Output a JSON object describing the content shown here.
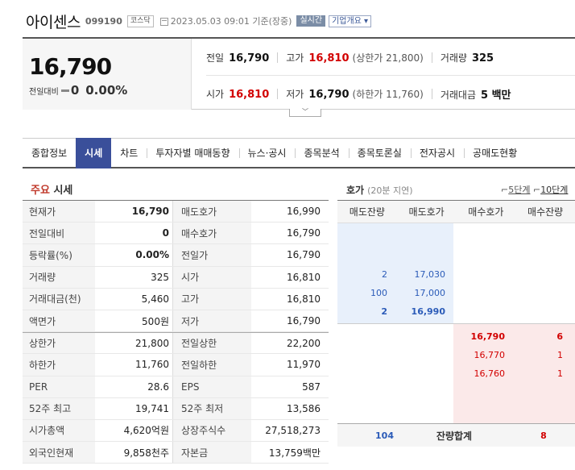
{
  "header": {
    "name": "아이센스",
    "code": "099190",
    "market": "코스닥",
    "date": "2023.05.03 09:01 기준(장중)",
    "realtime_label": "실시간",
    "company_info_label": "기업개요 ▾"
  },
  "summary": {
    "current_price": "16,790",
    "change_label": "전일대비",
    "change_value": "0",
    "change_pct": "0.00%",
    "prev_close_label": "전일",
    "prev_close": "16,790",
    "high_label": "고가",
    "high": "16,810",
    "upper_limit": "(상한가 21,800)",
    "volume_label": "거래량",
    "volume": "325",
    "open_label": "시가",
    "open": "16,810",
    "low_label": "저가",
    "low": "16,790",
    "lower_limit": "(하한가 11,760)",
    "amount_label": "거래대금",
    "amount": "5 백만"
  },
  "tabs": [
    "종합정보",
    "시세",
    "차트",
    "투자자별 매매동향",
    "뉴스·공시",
    "종목분석",
    "종목토론실",
    "전자공시",
    "공매도현황"
  ],
  "market_section": {
    "title_highlight": "주요",
    "title_rest": " 시세",
    "rows": [
      [
        "현재가",
        "16,790",
        "매도호가",
        "16,990"
      ],
      [
        "전일대비",
        "0",
        "매수호가",
        "16,790"
      ],
      [
        "등락률(%)",
        "0.00%",
        "전일가",
        "16,790"
      ],
      [
        "거래량",
        "325",
        "시가",
        "16,810"
      ],
      [
        "거래대금(천)",
        "5,460",
        "고가",
        "16,810"
      ],
      [
        "액면가",
        "500원",
        "저가",
        "16,790"
      ],
      [
        "상한가",
        "21,800",
        "전일상한",
        "22,200"
      ],
      [
        "하한가",
        "11,760",
        "전일하한",
        "11,970"
      ],
      [
        "PER",
        "28.6",
        "EPS",
        "587"
      ],
      [
        "52주 최고",
        "19,741",
        "52주 최저",
        "13,586"
      ],
      [
        "시가총액",
        "4,620억원",
        "상장주식수",
        "27,518,273"
      ],
      [
        "외국인현재",
        "9,858천주",
        "자본금",
        "13,759백만"
      ]
    ]
  },
  "orderbook": {
    "title": "호가",
    "delay_note": "(20분 지연)",
    "opt_5": "5단계",
    "opt_10": "10단계",
    "headers": [
      "매도잔량",
      "매도호가",
      "매수호가",
      "매수잔량"
    ],
    "asks": [
      {
        "qty": "2",
        "price": "17,030"
      },
      {
        "qty": "100",
        "price": "17,000"
      },
      {
        "qty": "2",
        "price": "16,990"
      }
    ],
    "bids": [
      {
        "price": "16,790",
        "qty": "6"
      },
      {
        "price": "16,770",
        "qty": "1"
      },
      {
        "price": "16,760",
        "qty": "1"
      }
    ],
    "total_ask": "104",
    "total_label": "잔량합계",
    "total_bid": "8"
  },
  "colors": {
    "up": "#d20000",
    "down": "#2b5bb8",
    "tab_active": "#3a4f9a"
  }
}
